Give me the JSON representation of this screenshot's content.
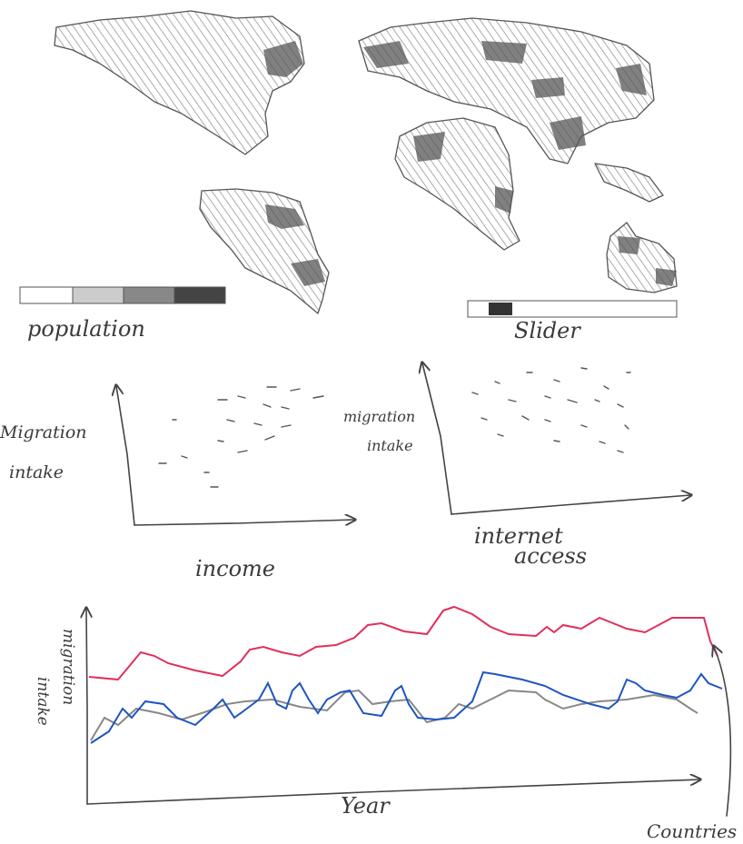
{
  "map_panel": {
    "legend_label": "population",
    "slider_label": "Slider"
  },
  "scatter_income": {
    "y_label": [
      "Migration",
      "intake"
    ],
    "x_label": "income"
  },
  "scatter_internet": {
    "y_label": [
      "migration",
      "intake"
    ],
    "x_label": [
      "internet",
      "access"
    ]
  },
  "line_chart": {
    "y_label": [
      "migration",
      "intake"
    ],
    "x_label": "Year",
    "annotation": "Countries"
  }
}
